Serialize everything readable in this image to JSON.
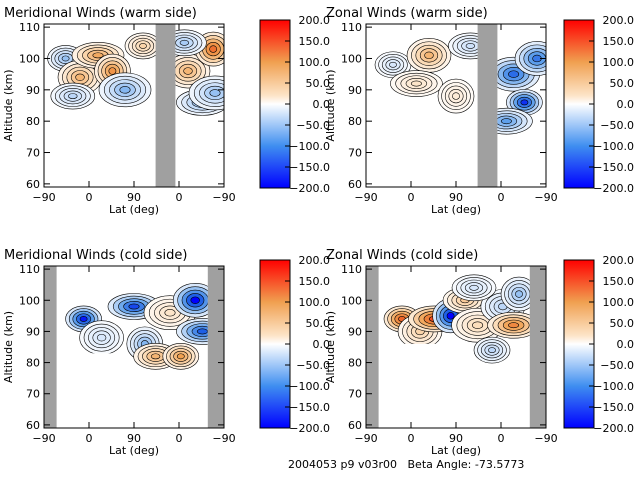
{
  "footer": {
    "run_id": "2004053 p9 v03r00",
    "beta_angle": "Beta Angle: -73.5773"
  },
  "colorbar": {
    "ticks": [
      "200.0",
      "150.0",
      "100.0",
      "50.0",
      "0.0",
      "−50.0",
      "−100.0",
      "−150.0",
      "−200.0"
    ],
    "range": [
      -200,
      200
    ],
    "colors": {
      "negative_max": "#0000ff",
      "zero": "#ffffff",
      "positive_max": "#ff0000"
    }
  },
  "colors": {
    "data_gap": "#a0a0a0",
    "contour_line": "#000000",
    "frame": "#000000"
  },
  "chart_data": [
    {
      "type": "heatmap",
      "title": "Meridional Winds (warm side)",
      "xlabel": "Lat (deg)",
      "ylabel": "Altitude (km)",
      "xticks": [
        "−90",
        "0",
        "90",
        "0",
        "−90"
      ],
      "yticks": [
        "60",
        "70",
        "80",
        "90",
        "100",
        "110"
      ],
      "ylim": [
        59,
        111
      ],
      "gaps": [
        [
          0.62,
          0.73
        ]
      ],
      "data_domains": [
        [
          0.0,
          0.62
        ],
        [
          0.73,
          1.0
        ]
      ],
      "data_bottom_alt": [
        [
          0.0,
          0.25,
          82
        ],
        [
          0.25,
          0.62,
          80
        ],
        [
          0.73,
          1.0,
          80
        ]
      ],
      "features": [
        {
          "x": 0.12,
          "alt": 100,
          "value": -80
        },
        {
          "x": 0.2,
          "alt": 94,
          "value": 90
        },
        {
          "x": 0.3,
          "alt": 101,
          "value": 100
        },
        {
          "x": 0.38,
          "alt": 96,
          "value": 120
        },
        {
          "x": 0.16,
          "alt": 88,
          "value": -60
        },
        {
          "x": 0.45,
          "alt": 90,
          "value": -90
        },
        {
          "x": 0.55,
          "alt": 104,
          "value": 60
        },
        {
          "x": 0.8,
          "alt": 96,
          "value": 90
        },
        {
          "x": 0.88,
          "alt": 86,
          "value": -90
        },
        {
          "x": 0.94,
          "alt": 103,
          "value": 150
        },
        {
          "x": 0.78,
          "alt": 105,
          "value": -70
        },
        {
          "x": 0.95,
          "alt": 89,
          "value": -80
        }
      ]
    },
    {
      "type": "heatmap",
      "title": "Zonal Winds (warm side)",
      "xlabel": "Lat (deg)",
      "ylabel": "Altitude (km)",
      "xticks": [
        "−90",
        "0",
        "90",
        "0",
        "−90"
      ],
      "yticks": [
        "60",
        "70",
        "80",
        "90",
        "100",
        "110"
      ],
      "ylim": [
        59,
        111
      ],
      "gaps": [
        [
          0.62,
          0.73
        ]
      ],
      "data_domains": [
        [
          0.0,
          0.62
        ],
        [
          0.73,
          1.0
        ]
      ],
      "data_bottom_alt": [
        [
          0.0,
          0.25,
          82
        ],
        [
          0.25,
          0.62,
          80
        ],
        [
          0.73,
          1.0,
          75
        ]
      ],
      "features": [
        {
          "x": 0.15,
          "alt": 98,
          "value": -40
        },
        {
          "x": 0.35,
          "alt": 101,
          "value": 90
        },
        {
          "x": 0.28,
          "alt": 92,
          "value": 40
        },
        {
          "x": 0.5,
          "alt": 88,
          "value": 30
        },
        {
          "x": 0.58,
          "alt": 104,
          "value": -50
        },
        {
          "x": 0.82,
          "alt": 95,
          "value": -150
        },
        {
          "x": 0.88,
          "alt": 86,
          "value": -180
        },
        {
          "x": 0.95,
          "alt": 100,
          "value": -140
        },
        {
          "x": 0.78,
          "alt": 80,
          "value": -110
        }
      ]
    },
    {
      "type": "heatmap",
      "title": "Meridional Winds (cold side)",
      "xlabel": "Lat (deg)",
      "ylabel": "Altitude (km)",
      "xticks": [
        "−90",
        "0",
        "90",
        "0",
        "−90"
      ],
      "yticks": [
        "60",
        "70",
        "80",
        "90",
        "100",
        "110"
      ],
      "ylim": [
        59,
        111
      ],
      "gaps": [
        [
          0.0,
          0.07
        ],
        [
          0.91,
          1.0
        ]
      ],
      "data_domains": [
        [
          0.07,
          0.91
        ]
      ],
      "data_bottom_alt": [
        [
          0.07,
          0.42,
          83
        ],
        [
          0.42,
          0.91,
          77
        ]
      ],
      "features": [
        {
          "x": 0.22,
          "alt": 94,
          "value": -190
        },
        {
          "x": 0.32,
          "alt": 88,
          "value": -40
        },
        {
          "x": 0.5,
          "alt": 98,
          "value": -170
        },
        {
          "x": 0.56,
          "alt": 86,
          "value": -90
        },
        {
          "x": 0.62,
          "alt": 82,
          "value": 90
        },
        {
          "x": 0.7,
          "alt": 96,
          "value": 40
        },
        {
          "x": 0.76,
          "alt": 82,
          "value": 110
        },
        {
          "x": 0.84,
          "alt": 100,
          "value": -200
        },
        {
          "x": 0.88,
          "alt": 90,
          "value": -160
        }
      ]
    },
    {
      "type": "heatmap",
      "title": "Zonal Winds (cold side)",
      "xlabel": "Lat (deg)",
      "ylabel": "Altitude (km)",
      "xticks": [
        "−90",
        "0",
        "90",
        "0",
        "−90"
      ],
      "yticks": [
        "60",
        "70",
        "80",
        "90",
        "100",
        "110"
      ],
      "ylim": [
        59,
        111
      ],
      "gaps": [
        [
          0.0,
          0.07
        ],
        [
          0.91,
          1.0
        ]
      ],
      "data_domains": [
        [
          0.07,
          0.91
        ]
      ],
      "data_bottom_alt": [
        [
          0.07,
          0.42,
          86
        ],
        [
          0.42,
          0.91,
          77
        ]
      ],
      "features": [
        {
          "x": 0.2,
          "alt": 94,
          "value": 160
        },
        {
          "x": 0.3,
          "alt": 90,
          "value": 60
        },
        {
          "x": 0.38,
          "alt": 94,
          "value": 170
        },
        {
          "x": 0.47,
          "alt": 95,
          "value": -200
        },
        {
          "x": 0.55,
          "alt": 100,
          "value": 70
        },
        {
          "x": 0.62,
          "alt": 92,
          "value": 50
        },
        {
          "x": 0.7,
          "alt": 84,
          "value": -60
        },
        {
          "x": 0.76,
          "alt": 98,
          "value": -60
        },
        {
          "x": 0.82,
          "alt": 92,
          "value": 130
        },
        {
          "x": 0.85,
          "alt": 102,
          "value": -80
        },
        {
          "x": 0.6,
          "alt": 104,
          "value": -40
        }
      ]
    }
  ]
}
